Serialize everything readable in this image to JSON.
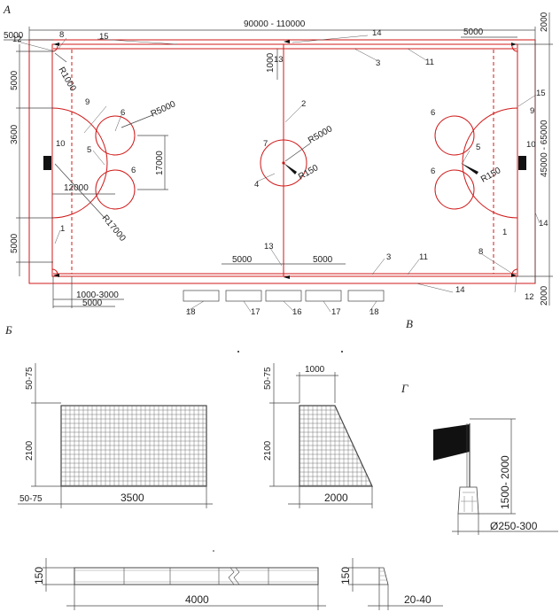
{
  "sections": {
    "a": "А",
    "b": "Б",
    "v": "В",
    "g": "Г"
  },
  "dims": {
    "field_length": "90000 - 110000",
    "field_width": "45000 - 65000",
    "corner_offset_top_left": "5000",
    "corner_offset_top_right": "5000",
    "arc_radius_corner": "R1000",
    "left_5000_top": "5000",
    "left_3600": "3600",
    "left_5000_bottom": "5000",
    "center_1000": "1000",
    "r5000_left": "R5000",
    "r5000_center": "R5000",
    "r150_center": "R150",
    "r150_right": "R150",
    "d17000": "17000",
    "d12000": "12000",
    "r17000": "R17000",
    "bottom_5000_left": "5000",
    "bottom_5000_right": "5000",
    "d1000_3000": "1000-3000",
    "d5000_bottom": "5000",
    "right_2000_top": "2000",
    "right_2000_bottom": "2000"
  },
  "labels": [
    "12",
    "8",
    "15",
    "14",
    "13",
    "3",
    "11",
    "9",
    "6",
    "7",
    "2",
    "10",
    "5",
    "6",
    "4",
    "1",
    "5",
    "6",
    "9",
    "15",
    "10",
    "6",
    "1",
    "14",
    "8",
    "12",
    "13",
    "3",
    "11",
    "14",
    "18",
    "17",
    "16",
    "17",
    "18"
  ],
  "goal_front": {
    "top": "50-75",
    "height": "2100",
    "bottom": "50-75",
    "width": "3500"
  },
  "goal_side": {
    "top_width": "1000",
    "top": "50-75",
    "height": "2100",
    "depth": "2000"
  },
  "flag": {
    "height": "1500- 2000",
    "diameter": "Ø250-300"
  },
  "board": {
    "height_left": "150",
    "length": "4000",
    "height_right": "150",
    "thickness": "20-40"
  },
  "colors": {
    "line": "#d01818",
    "ink": "#222222"
  }
}
